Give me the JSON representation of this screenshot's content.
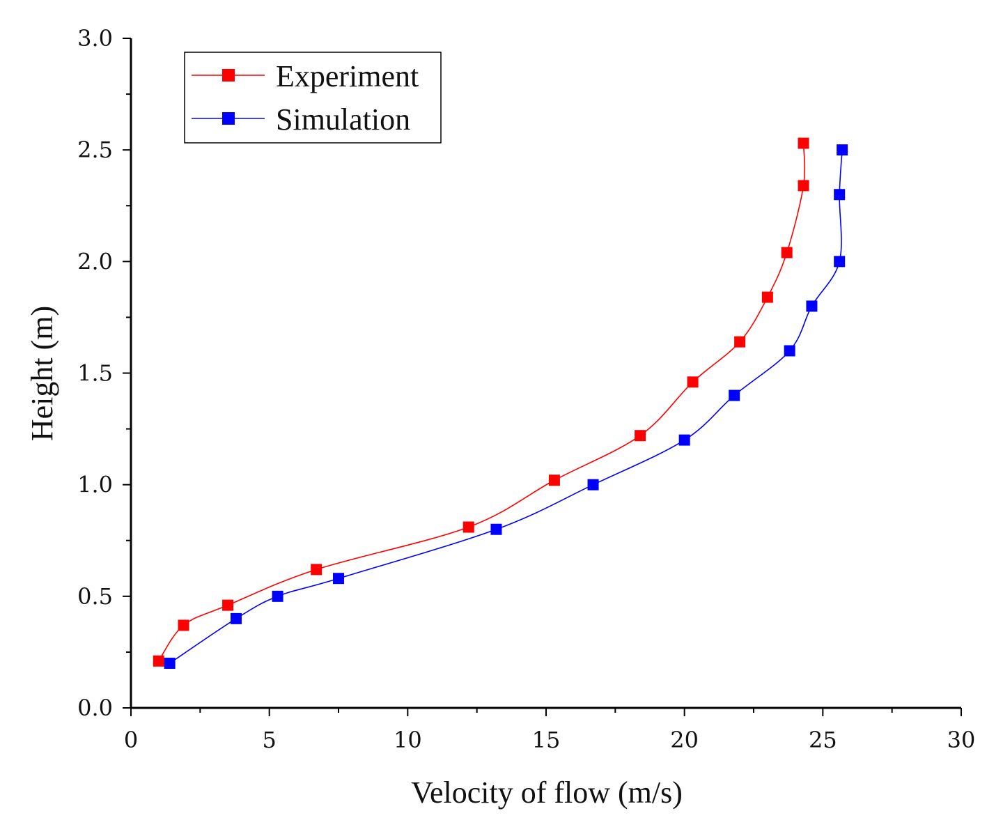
{
  "chart_data": {
    "type": "line",
    "title": "",
    "xlabel": "Velocity of flow (m/s)",
    "ylabel": "Height (m)",
    "xlim": [
      0,
      30
    ],
    "ylim": [
      0,
      3.0
    ],
    "x_ticks": [
      "0",
      "5",
      "10",
      "15",
      "20",
      "25",
      "30"
    ],
    "y_ticks": [
      "0.0",
      "0.5",
      "1.0",
      "1.5",
      "2.0",
      "2.5",
      "3.0"
    ],
    "grid": false,
    "legend_position": "top-left",
    "series": [
      {
        "name": "Experiment",
        "color": "#ff0000",
        "marker": "square",
        "points": [
          {
            "x": 1.0,
            "y": 0.21
          },
          {
            "x": 1.9,
            "y": 0.37
          },
          {
            "x": 3.5,
            "y": 0.46
          },
          {
            "x": 6.7,
            "y": 0.62
          },
          {
            "x": 12.2,
            "y": 0.81
          },
          {
            "x": 15.3,
            "y": 1.02
          },
          {
            "x": 18.4,
            "y": 1.22
          },
          {
            "x": 20.3,
            "y": 1.46
          },
          {
            "x": 22.0,
            "y": 1.64
          },
          {
            "x": 23.0,
            "y": 1.84
          },
          {
            "x": 23.7,
            "y": 2.04
          },
          {
            "x": 24.3,
            "y": 2.34
          },
          {
            "x": 24.3,
            "y": 2.53
          }
        ]
      },
      {
        "name": "Simulation",
        "color": "#0000ff",
        "marker": "square",
        "points": [
          {
            "x": 1.4,
            "y": 0.2
          },
          {
            "x": 3.8,
            "y": 0.4
          },
          {
            "x": 5.3,
            "y": 0.5
          },
          {
            "x": 7.5,
            "y": 0.58
          },
          {
            "x": 13.2,
            "y": 0.8
          },
          {
            "x": 16.7,
            "y": 1.0
          },
          {
            "x": 20.0,
            "y": 1.2
          },
          {
            "x": 21.8,
            "y": 1.4
          },
          {
            "x": 23.8,
            "y": 1.6
          },
          {
            "x": 24.6,
            "y": 1.8
          },
          {
            "x": 25.6,
            "y": 2.0
          },
          {
            "x": 25.6,
            "y": 2.3
          },
          {
            "x": 25.7,
            "y": 2.5
          }
        ]
      }
    ]
  }
}
